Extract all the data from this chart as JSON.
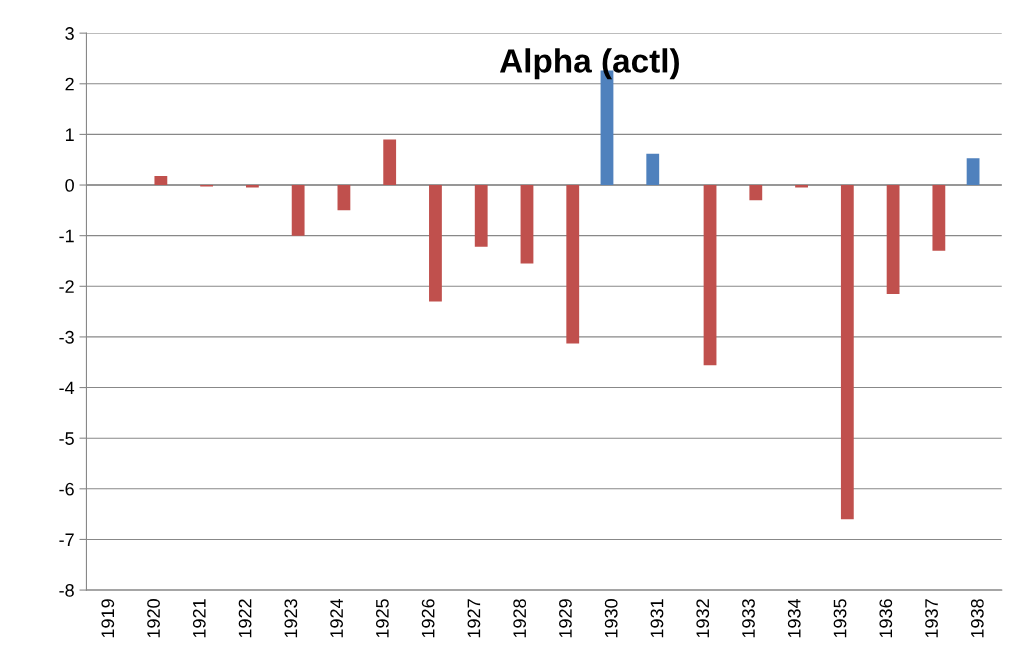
{
  "chart_data": {
    "type": "bar",
    "title": "Alpha (actl)",
    "categories": [
      "1919",
      "1920",
      "1921",
      "1922",
      "1923",
      "1924",
      "1925",
      "1926",
      "1927",
      "1928",
      "1929",
      "1930",
      "1931",
      "1932",
      "1933",
      "1934",
      "1935",
      "1936",
      "1937",
      "1938"
    ],
    "series": [
      {
        "color": "#4f81bd",
        "values": [
          null,
          null,
          null,
          null,
          null,
          null,
          null,
          null,
          null,
          null,
          null,
          2.26,
          0.62,
          null,
          null,
          null,
          null,
          null,
          null,
          0.53
        ]
      },
      {
        "color": "#c0504d",
        "values": [
          null,
          0.18,
          -0.03,
          -0.05,
          -1.0,
          -0.5,
          0.9,
          -2.3,
          -1.22,
          -1.55,
          -3.13,
          null,
          null,
          -3.56,
          -0.3,
          -0.05,
          -6.6,
          -2.15,
          -1.3,
          null
        ]
      }
    ],
    "ylim": [
      -8,
      3
    ],
    "yticks": [
      -8,
      -7,
      -6,
      -5,
      -4,
      -3,
      -2,
      -1,
      0,
      1,
      2,
      3
    ],
    "grid": "y",
    "legend": false
  }
}
